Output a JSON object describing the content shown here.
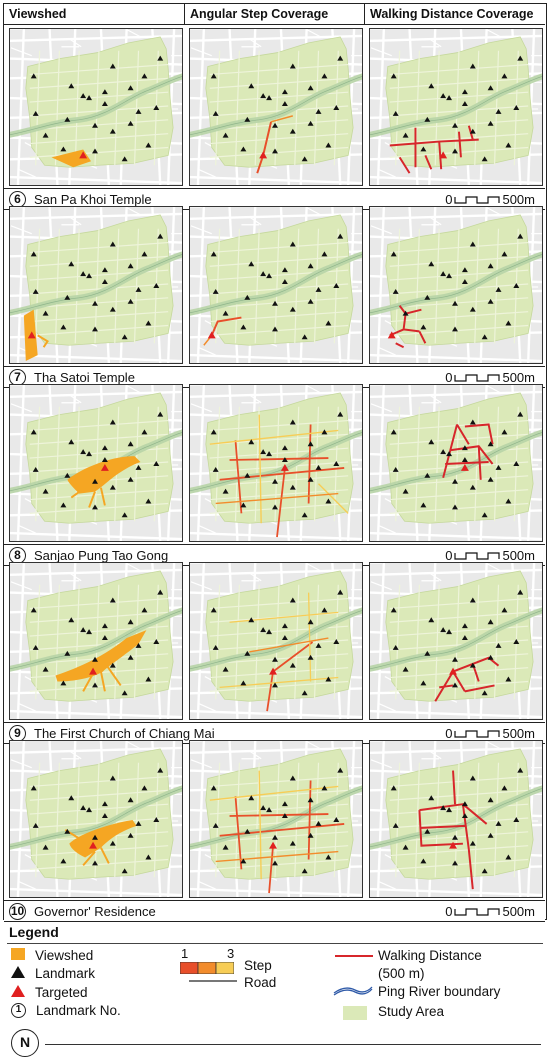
{
  "headers": {
    "col1": "Viewshed",
    "col2": "Angular Step Coverage",
    "col3": "Walking Distance Coverage"
  },
  "rows": [
    {
      "num": "6",
      "title": "San Pa Khoi Temple"
    },
    {
      "num": "7",
      "title": "Tha Satoi Temple"
    },
    {
      "num": "8",
      "title": "Sanjao Pung Tao Gong"
    },
    {
      "num": "9",
      "title": "The First Church of Chiang Mai"
    },
    {
      "num": "10",
      "title": "Governor' Residence"
    }
  ],
  "scale": {
    "zero": "0",
    "end": "500m"
  },
  "legend": {
    "title": "Legend",
    "viewshed": "Viewshed",
    "landmark": "Landmark",
    "targeted": "Targeted",
    "landmark_no": "Landmark No.",
    "landmark_no_symbol": "1",
    "step_min": "1",
    "step_max": "3",
    "step": "Step",
    "road": "Road",
    "walking": "Walking Distance",
    "walking_sub": "(500 m)",
    "river": "Ping River boundary",
    "study_area": "Study Area",
    "north": "N"
  },
  "colors": {
    "study_area": "#dbe9b8",
    "river": "#b7d4a6",
    "viewshed": "#f5a623",
    "step_low": "#e84f2a",
    "step_mid": "#f28c2c",
    "step_high": "#f7cd56",
    "walking": "#d7262b",
    "landmark": "#111111",
    "targeted": "#e02020",
    "road": "#999999"
  }
}
